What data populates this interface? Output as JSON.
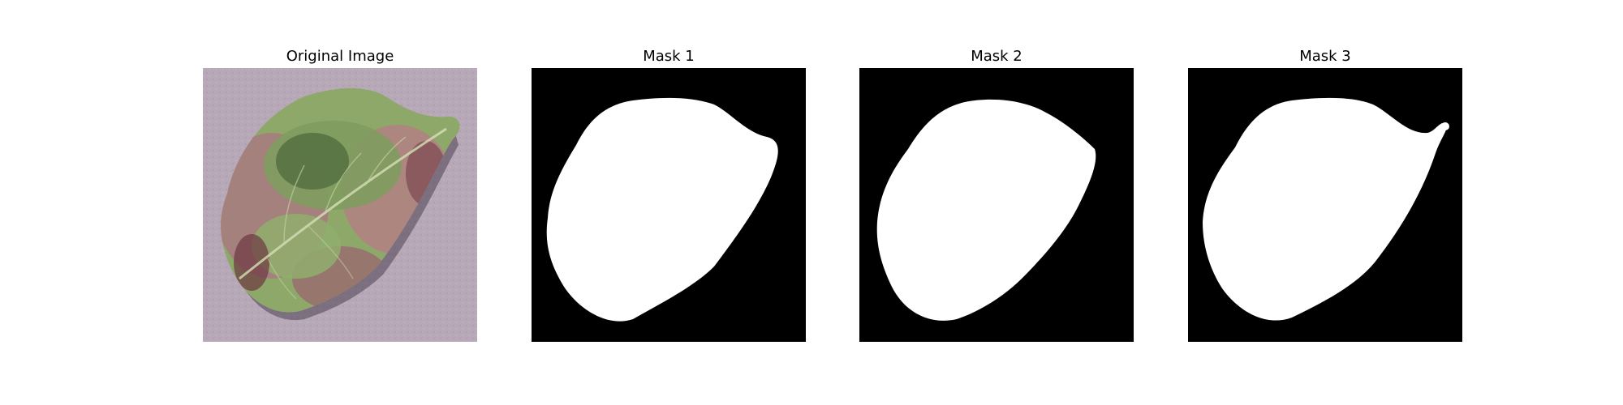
{
  "figure": {
    "panels": [
      {
        "title": "Original Image",
        "kind": "photo",
        "subject": "leaf-photo"
      },
      {
        "title": "Mask 1",
        "kind": "mask"
      },
      {
        "title": "Mask 2",
        "kind": "mask"
      },
      {
        "title": "Mask 3",
        "kind": "mask"
      }
    ]
  },
  "colors": {
    "background": "#ffffff",
    "mask_background": "#000000",
    "mask_foreground": "#ffffff",
    "photo_background": "#b7a8b8",
    "leaf_green": "#8ea86a",
    "leaf_dark_green": "#4f6a3c",
    "leaf_pink": "#b77d86",
    "leaf_maroon": "#6d3641",
    "leaf_shadow": "#4a3f52"
  }
}
